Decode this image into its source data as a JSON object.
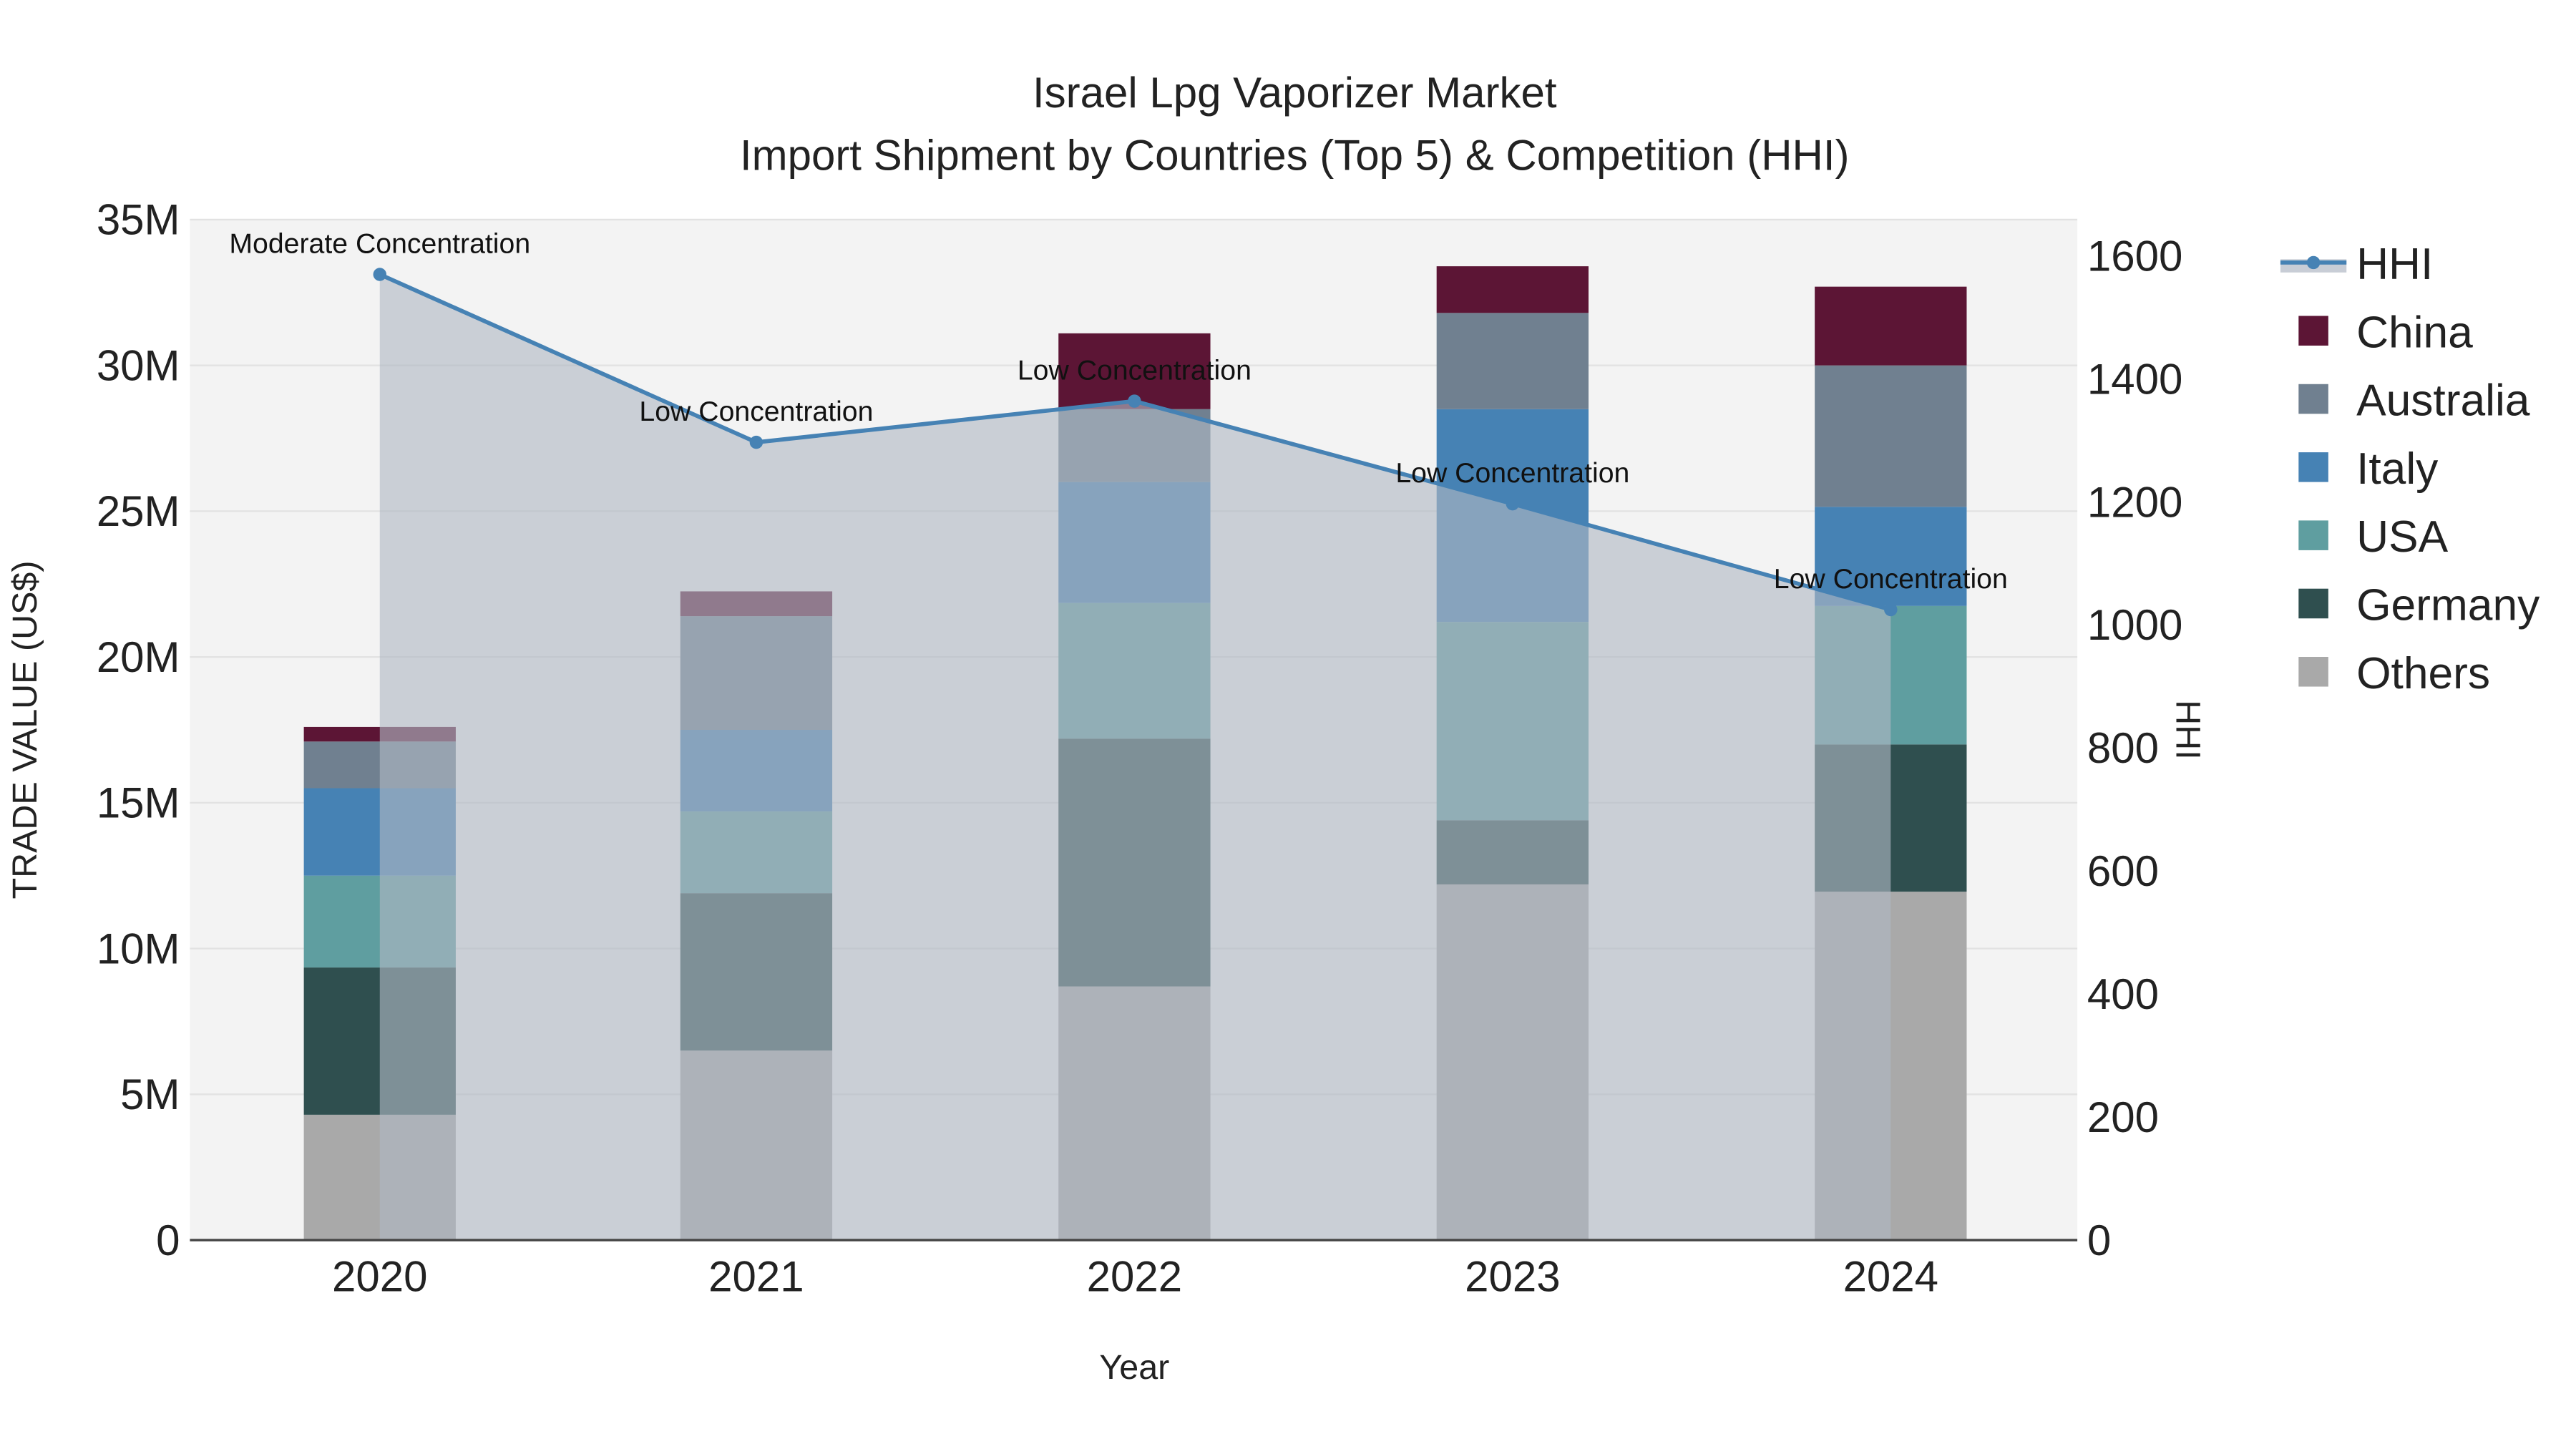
{
  "chart_data": {
    "type": "bar",
    "title": "Israel Lpg Vaporizer Market",
    "subtitle": "Import Shipment by Countries (Top 5) & Competition (HHI)",
    "xlabel": "Year",
    "ylabel": "TRADE VALUE (US$)",
    "y2label": "HHI",
    "categories": [
      "2020",
      "2021",
      "2022",
      "2023",
      "2024"
    ],
    "ylim": [
      0,
      35000000
    ],
    "y2lim": [
      0,
      1660
    ],
    "yticks": [
      {
        "v": 0,
        "label": "0"
      },
      {
        "v": 5000000,
        "label": "5M"
      },
      {
        "v": 10000000,
        "label": "10M"
      },
      {
        "v": 15000000,
        "label": "15M"
      },
      {
        "v": 20000000,
        "label": "20M"
      },
      {
        "v": 25000000,
        "label": "25M"
      },
      {
        "v": 30000000,
        "label": "30M"
      },
      {
        "v": 35000000,
        "label": "35M"
      }
    ],
    "y2ticks": [
      {
        "v": 0,
        "label": "0"
      },
      {
        "v": 200,
        "label": "200"
      },
      {
        "v": 400,
        "label": "400"
      },
      {
        "v": 600,
        "label": "600"
      },
      {
        "v": 800,
        "label": "800"
      },
      {
        "v": 1000,
        "label": "1000"
      },
      {
        "v": 1200,
        "label": "1200"
      },
      {
        "v": 1400,
        "label": "1400"
      },
      {
        "v": 1600,
        "label": "1600"
      }
    ],
    "series": [
      {
        "name": "Others",
        "color": "#a9a9a9",
        "values": [
          4300000,
          6500000,
          8700000,
          12200000,
          11950000
        ]
      },
      {
        "name": "Germany",
        "color": "#2f4f4f",
        "values": [
          5050000,
          5400000,
          8500000,
          2200000,
          5050000
        ]
      },
      {
        "name": "USA",
        "color": "#5f9ea0",
        "values": [
          3150000,
          2800000,
          4650000,
          6800000,
          4750000
        ]
      },
      {
        "name": "Italy",
        "color": "#4682b4",
        "values": [
          3000000,
          2800000,
          4150000,
          7300000,
          3400000
        ]
      },
      {
        "name": "Australia",
        "color": "#708090",
        "values": [
          1600000,
          3900000,
          2500000,
          3300000,
          4850000
        ]
      },
      {
        "name": "China",
        "color": "#5c1535",
        "values": [
          500000,
          850000,
          2600000,
          1600000,
          2700000
        ]
      }
    ],
    "hhi": {
      "name": "HHI",
      "color": "#4682b4",
      "values": [
        1570,
        1297,
        1364,
        1197,
        1025
      ],
      "annotations": [
        "Moderate Concentration",
        "Low Concentration",
        "Low Concentration",
        "Low Concentration",
        "Low Concentration"
      ]
    },
    "legend": [
      "HHI",
      "China",
      "Australia",
      "Italy",
      "USA",
      "Germany",
      "Others"
    ],
    "legend_placement": "right",
    "grid": true
  }
}
